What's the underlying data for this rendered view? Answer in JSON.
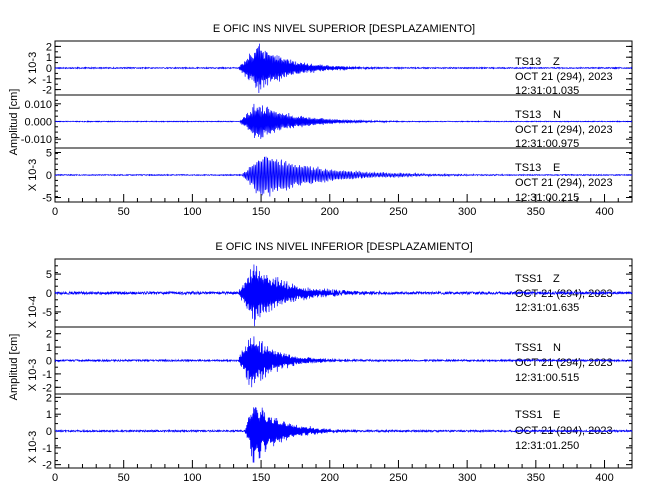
{
  "chart_data": [
    {
      "type": "line",
      "title": "E OFIC INS NIVEL SUPERIOR [DESPLAZAMIENTO]",
      "ylabel": "Amplitud [cm]",
      "xlim": [
        0,
        420
      ],
      "xticks": [
        "0",
        "50",
        "100",
        "150",
        "200",
        "250",
        "300",
        "350",
        "400"
      ],
      "color": "#0000ff",
      "panels": [
        {
          "station": "TS13",
          "component": "Z",
          "date": "OCT 21 (294), 2023",
          "time": "12:31:01.035",
          "scale_label": "X 10-3",
          "ylim": [
            -2.5,
            2.5
          ],
          "yticks": [
            "2",
            "1",
            "0",
            "-1",
            "-2"
          ],
          "onset": 133,
          "peak_at": 148,
          "peak_amp": 2.5,
          "decay": 22,
          "freq": 1.4,
          "noise": 0.05,
          "seed": 11
        },
        {
          "station": "TS13",
          "component": "N",
          "date": "OCT 21 (294), 2023",
          "time": "12:31:00.975",
          "scale_label": "",
          "ylim": [
            -0.015,
            0.015
          ],
          "yticks": [
            "0.010",
            "0.000",
            "-0.010"
          ],
          "onset": 134,
          "peak_at": 147,
          "peak_amp": 0.012,
          "decay": 25,
          "freq": 1.3,
          "noise": 0.0002,
          "seed": 23
        },
        {
          "station": "TS13",
          "component": "E",
          "date": "OCT 21 (294), 2023",
          "time": "12:31:00.215",
          "scale_label": "X 10-3",
          "ylim": [
            -6,
            6
          ],
          "yticks": [
            "5",
            "0",
            "-5"
          ],
          "onset": 136,
          "peak_at": 150,
          "peak_amp": 5.6,
          "decay": 38,
          "freq": 0.9,
          "noise": 0.1,
          "seed": 37
        }
      ]
    },
    {
      "type": "line",
      "title": "E OFIC INS NIVEL INFERIOR [DESPLAZAMIENTO]",
      "ylabel": "Amplitud [cm]",
      "xlim": [
        0,
        420
      ],
      "xticks": [
        "0",
        "50",
        "100",
        "150",
        "200",
        "250",
        "300",
        "350",
        "400"
      ],
      "color": "#0000ff",
      "panels": [
        {
          "station": "TSS1",
          "component": "Z",
          "date": "OCT 21 (294), 2023",
          "time": "12:31:01.635",
          "scale_label": "X 10-4",
          "ylim": [
            -9,
            9
          ],
          "yticks": [
            "5",
            "0",
            "-5"
          ],
          "onset": 133,
          "peak_at": 145,
          "peak_amp": 9,
          "decay": 22,
          "freq": 1.5,
          "noise": 0.35,
          "seed": 51
        },
        {
          "station": "TSS1",
          "component": "N",
          "date": "OCT 21 (294), 2023",
          "time": "12:31:00.515",
          "scale_label": "X 10-3",
          "ylim": [
            -2.5,
            2.5
          ],
          "yticks": [
            "2",
            "1",
            "0",
            "-1",
            "-2"
          ],
          "onset": 133,
          "peak_at": 143,
          "peak_amp": 2.3,
          "decay": 18,
          "freq": 1.5,
          "noise": 0.06,
          "seed": 67
        },
        {
          "station": "TSS1",
          "component": "E",
          "date": "OCT 21 (294), 2023",
          "time": "12:31:01.250",
          "scale_label": "X 10-3",
          "ylim": [
            -2.2,
            2.2
          ],
          "yticks": [
            "2",
            "1",
            "0",
            "-1",
            "-2"
          ],
          "onset": 138,
          "peak_at": 145,
          "peak_amp": 2.2,
          "decay": 18,
          "freq": 1.6,
          "noise": 0.05,
          "seed": 83
        }
      ]
    }
  ]
}
